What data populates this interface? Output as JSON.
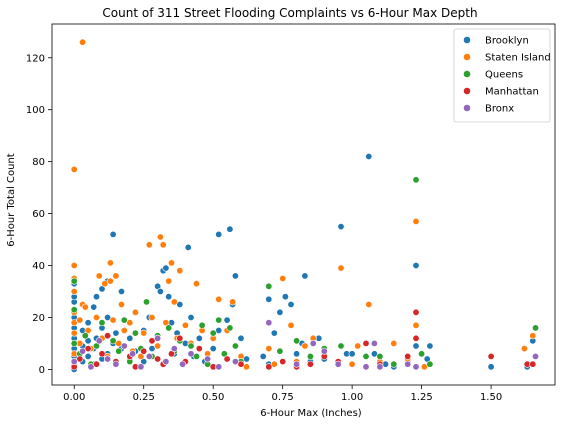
{
  "chart_data": {
    "type": "scatter",
    "title": "Count of 311 Street Flooding Complaints vs 6-Hour Max Depth",
    "xlabel": "6-Hour Max (Inches)",
    "ylabel": "6-Hour Total Count",
    "xlim": [
      -0.08,
      1.73
    ],
    "ylim": [
      -6,
      133
    ],
    "xticks": [
      0.0,
      0.25,
      0.5,
      0.75,
      1.0,
      1.25,
      1.5
    ],
    "xtick_labels": [
      "0.00",
      "0.25",
      "0.50",
      "0.75",
      "1.00",
      "1.25",
      "1.50"
    ],
    "yticks": [
      0,
      20,
      40,
      60,
      80,
      100,
      120
    ],
    "ytick_labels": [
      "0",
      "20",
      "40",
      "60",
      "80",
      "100",
      "120"
    ],
    "grid": false,
    "legend_position": "top-right",
    "series": [
      {
        "name": "Brooklyn",
        "color": "#1f77b4",
        "points": [
          [
            0.0,
            0
          ],
          [
            0.0,
            2
          ],
          [
            0.0,
            5
          ],
          [
            0.0,
            8
          ],
          [
            0.0,
            12
          ],
          [
            0.0,
            16
          ],
          [
            0.0,
            20
          ],
          [
            0.0,
            26
          ],
          [
            0.0,
            28
          ],
          [
            0.0,
            33
          ],
          [
            0.03,
            3
          ],
          [
            0.03,
            9
          ],
          [
            0.03,
            15
          ],
          [
            0.05,
            5
          ],
          [
            0.05,
            11
          ],
          [
            0.05,
            18
          ],
          [
            0.07,
            2
          ],
          [
            0.07,
            8
          ],
          [
            0.07,
            24
          ],
          [
            0.08,
            12
          ],
          [
            0.08,
            28
          ],
          [
            0.1,
            4
          ],
          [
            0.1,
            16
          ],
          [
            0.1,
            31
          ],
          [
            0.12,
            6
          ],
          [
            0.12,
            20
          ],
          [
            0.12,
            34
          ],
          [
            0.14,
            52
          ],
          [
            0.14,
            10
          ],
          [
            0.15,
            2
          ],
          [
            0.15,
            14
          ],
          [
            0.17,
            30
          ],
          [
            0.17,
            8
          ],
          [
            0.18,
            19
          ],
          [
            0.2,
            4
          ],
          [
            0.2,
            12
          ],
          [
            0.22,
            22
          ],
          [
            0.22,
            7
          ],
          [
            0.25,
            3
          ],
          [
            0.25,
            15
          ],
          [
            0.27,
            20
          ],
          [
            0.28,
            8
          ],
          [
            0.3,
            32
          ],
          [
            0.3,
            12
          ],
          [
            0.31,
            30
          ],
          [
            0.32,
            38
          ],
          [
            0.33,
            39
          ],
          [
            0.34,
            28
          ],
          [
            0.35,
            18
          ],
          [
            0.36,
            6
          ],
          [
            0.37,
            14
          ],
          [
            0.38,
            25
          ],
          [
            0.4,
            10
          ],
          [
            0.41,
            47
          ],
          [
            0.42,
            20
          ],
          [
            0.43,
            5
          ],
          [
            0.45,
            12
          ],
          [
            0.47,
            3
          ],
          [
            0.5,
            8
          ],
          [
            0.52,
            52
          ],
          [
            0.52,
            15
          ],
          [
            0.55,
            19
          ],
          [
            0.56,
            54
          ],
          [
            0.57,
            25
          ],
          [
            0.58,
            36
          ],
          [
            0.6,
            12
          ],
          [
            0.62,
            4
          ],
          [
            0.68,
            5
          ],
          [
            0.7,
            27
          ],
          [
            0.7,
            2
          ],
          [
            0.72,
            14
          ],
          [
            0.74,
            22
          ],
          [
            0.76,
            28
          ],
          [
            0.78,
            25
          ],
          [
            0.8,
            6
          ],
          [
            0.82,
            10
          ],
          [
            0.83,
            36
          ],
          [
            0.85,
            3
          ],
          [
            0.88,
            12
          ],
          [
            0.9,
            4
          ],
          [
            0.96,
            55
          ],
          [
            0.98,
            6
          ],
          [
            1.0,
            6
          ],
          [
            1.06,
            82
          ],
          [
            1.08,
            6
          ],
          [
            1.12,
            2
          ],
          [
            1.15,
            1
          ],
          [
            1.2,
            3
          ],
          [
            1.23,
            40
          ],
          [
            1.23,
            9
          ],
          [
            1.27,
            4
          ],
          [
            1.28,
            9
          ],
          [
            1.5,
            1
          ],
          [
            1.63,
            1
          ],
          [
            1.65,
            11
          ]
        ]
      },
      {
        "name": "Staten Island",
        "color": "#ff7f0e",
        "points": [
          [
            0.0,
            77
          ],
          [
            0.0,
            40
          ],
          [
            0.0,
            35
          ],
          [
            0.0,
            30
          ],
          [
            0.0,
            22
          ],
          [
            0.0,
            18
          ],
          [
            0.0,
            14
          ],
          [
            0.0,
            6
          ],
          [
            0.02,
            19
          ],
          [
            0.02,
            10
          ],
          [
            0.03,
            126
          ],
          [
            0.03,
            25
          ],
          [
            0.04,
            24
          ],
          [
            0.05,
            15
          ],
          [
            0.06,
            8
          ],
          [
            0.08,
            20
          ],
          [
            0.09,
            36
          ],
          [
            0.1,
            12
          ],
          [
            0.11,
            33
          ],
          [
            0.12,
            5
          ],
          [
            0.13,
            41
          ],
          [
            0.13,
            34
          ],
          [
            0.14,
            19
          ],
          [
            0.15,
            36
          ],
          [
            0.16,
            10
          ],
          [
            0.17,
            25
          ],
          [
            0.18,
            15
          ],
          [
            0.2,
            18
          ],
          [
            0.21,
            7
          ],
          [
            0.22,
            22
          ],
          [
            0.24,
            5
          ],
          [
            0.25,
            14
          ],
          [
            0.27,
            48
          ],
          [
            0.28,
            20
          ],
          [
            0.3,
            9
          ],
          [
            0.31,
            51
          ],
          [
            0.32,
            48
          ],
          [
            0.33,
            18
          ],
          [
            0.34,
            34
          ],
          [
            0.35,
            41
          ],
          [
            0.36,
            26
          ],
          [
            0.37,
            12
          ],
          [
            0.38,
            38
          ],
          [
            0.4,
            17
          ],
          [
            0.42,
            10
          ],
          [
            0.44,
            33
          ],
          [
            0.46,
            15
          ],
          [
            0.48,
            6
          ],
          [
            0.5,
            12
          ],
          [
            0.52,
            27
          ],
          [
            0.55,
            15
          ],
          [
            0.57,
            26
          ],
          [
            0.6,
            5
          ],
          [
            0.62,
            1
          ],
          [
            0.7,
            8
          ],
          [
            0.72,
            2
          ],
          [
            0.75,
            35
          ],
          [
            0.78,
            17
          ],
          [
            0.8,
            3
          ],
          [
            0.83,
            9
          ],
          [
            0.86,
            12
          ],
          [
            0.9,
            6
          ],
          [
            0.96,
            39
          ],
          [
            1.0,
            2
          ],
          [
            1.02,
            9
          ],
          [
            1.06,
            25
          ],
          [
            1.1,
            3
          ],
          [
            1.15,
            10
          ],
          [
            1.2,
            4
          ],
          [
            1.23,
            57
          ],
          [
            1.23,
            17
          ],
          [
            1.26,
            1
          ],
          [
            1.62,
            8
          ],
          [
            1.65,
            13
          ]
        ]
      },
      {
        "name": "Queens",
        "color": "#2ca02c",
        "points": [
          [
            0.0,
            34
          ],
          [
            0.0,
            23
          ],
          [
            0.0,
            10
          ],
          [
            0.0,
            3
          ],
          [
            0.02,
            6
          ],
          [
            0.04,
            13
          ],
          [
            0.06,
            2
          ],
          [
            0.08,
            9
          ],
          [
            0.1,
            18
          ],
          [
            0.12,
            4
          ],
          [
            0.14,
            11
          ],
          [
            0.16,
            7
          ],
          [
            0.18,
            19
          ],
          [
            0.2,
            3
          ],
          [
            0.22,
            14
          ],
          [
            0.24,
            8
          ],
          [
            0.26,
            26
          ],
          [
            0.28,
            5
          ],
          [
            0.3,
            13
          ],
          [
            0.32,
            2
          ],
          [
            0.34,
            16
          ],
          [
            0.36,
            7
          ],
          [
            0.38,
            11
          ],
          [
            0.4,
            3
          ],
          [
            0.42,
            9
          ],
          [
            0.44,
            5
          ],
          [
            0.46,
            17
          ],
          [
            0.48,
            2
          ],
          [
            0.5,
            14
          ],
          [
            0.52,
            19
          ],
          [
            0.54,
            6
          ],
          [
            0.56,
            16
          ],
          [
            0.58,
            9
          ],
          [
            0.6,
            3
          ],
          [
            0.7,
            32
          ],
          [
            0.74,
            7
          ],
          [
            0.8,
            11
          ],
          [
            0.85,
            5
          ],
          [
            0.9,
            8
          ],
          [
            0.96,
            9
          ],
          [
            1.05,
            5
          ],
          [
            1.1,
            5
          ],
          [
            1.15,
            2
          ],
          [
            1.23,
            73
          ],
          [
            1.25,
            6
          ],
          [
            1.28,
            2
          ],
          [
            1.66,
            16
          ]
        ]
      },
      {
        "name": "Manhattan",
        "color": "#d62728",
        "points": [
          [
            0.0,
            1
          ],
          [
            0.02,
            4
          ],
          [
            0.05,
            8
          ],
          [
            0.08,
            2
          ],
          [
            0.1,
            6
          ],
          [
            0.12,
            13
          ],
          [
            0.15,
            3
          ],
          [
            0.18,
            9
          ],
          [
            0.2,
            5
          ],
          [
            0.22,
            1
          ],
          [
            0.25,
            7
          ],
          [
            0.28,
            11
          ],
          [
            0.3,
            4
          ],
          [
            0.32,
            2
          ],
          [
            0.35,
            6
          ],
          [
            0.38,
            12
          ],
          [
            0.4,
            3
          ],
          [
            0.45,
            8
          ],
          [
            0.5,
            1
          ],
          [
            0.55,
            4
          ],
          [
            0.6,
            2
          ],
          [
            0.7,
            1
          ],
          [
            0.75,
            3
          ],
          [
            0.8,
            1
          ],
          [
            0.85,
            2
          ],
          [
            0.9,
            5
          ],
          [
            0.95,
            3
          ],
          [
            1.05,
            10
          ],
          [
            1.1,
            2
          ],
          [
            1.2,
            5
          ],
          [
            1.23,
            22
          ],
          [
            1.23,
            12
          ],
          [
            1.5,
            5
          ],
          [
            1.63,
            2
          ],
          [
            1.65,
            2
          ]
        ]
      },
      {
        "name": "Bronx",
        "color": "#9467bd",
        "points": [
          [
            0.0,
            3
          ],
          [
            0.03,
            7
          ],
          [
            0.06,
            1
          ],
          [
            0.09,
            11
          ],
          [
            0.12,
            4
          ],
          [
            0.15,
            2
          ],
          [
            0.18,
            9
          ],
          [
            0.21,
            6
          ],
          [
            0.24,
            1
          ],
          [
            0.27,
            5
          ],
          [
            0.3,
            12
          ],
          [
            0.33,
            3
          ],
          [
            0.36,
            8
          ],
          [
            0.39,
            2
          ],
          [
            0.42,
            6
          ],
          [
            0.48,
            4
          ],
          [
            0.52,
            1
          ],
          [
            0.58,
            3
          ],
          [
            0.7,
            18
          ],
          [
            0.8,
            2
          ],
          [
            0.86,
            10
          ],
          [
            0.9,
            7
          ],
          [
            0.95,
            2
          ],
          [
            1.05,
            1
          ],
          [
            1.08,
            10
          ],
          [
            1.1,
            1
          ],
          [
            1.2,
            2
          ],
          [
            1.23,
            1
          ],
          [
            1.66,
            5
          ]
        ]
      }
    ]
  }
}
